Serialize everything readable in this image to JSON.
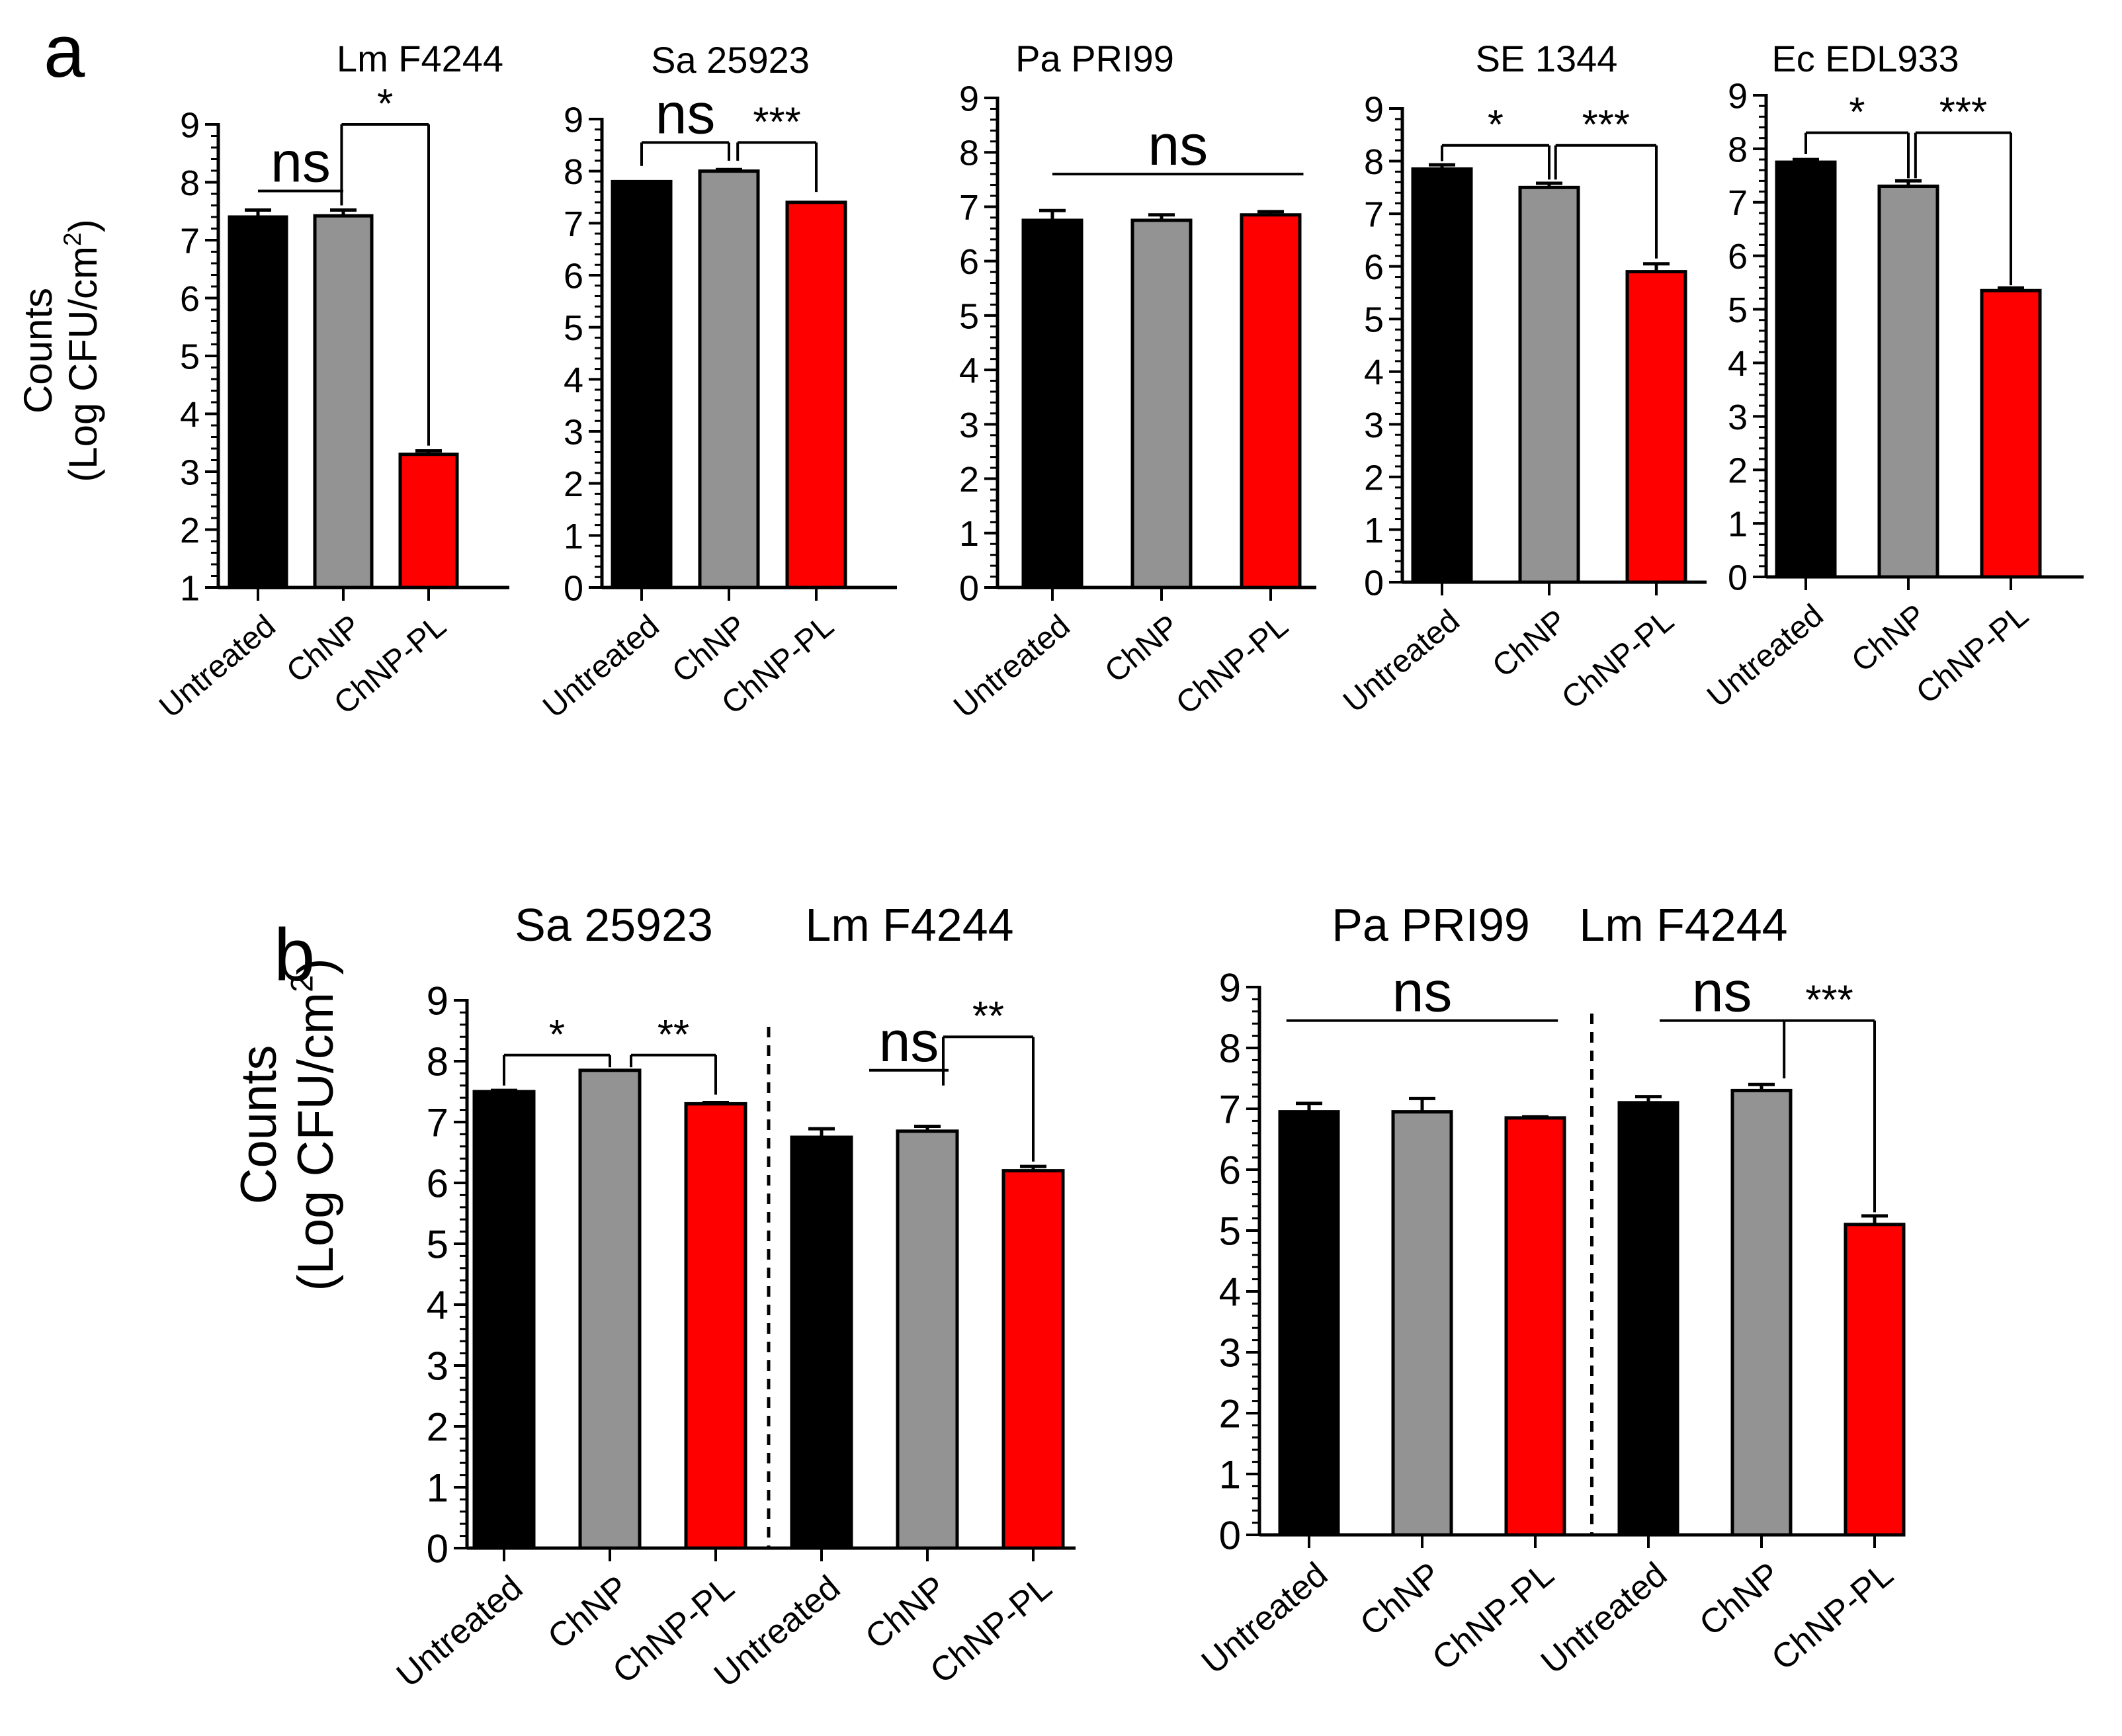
{
  "panel_labels": {
    "a": "a",
    "b": "b"
  },
  "colors": {
    "untreated": "#000000",
    "chnp": "#939393",
    "chnp_pl": "#ff0000",
    "axis": "#000000"
  },
  "chart_data": [
    {
      "type": "bar",
      "panel": "a",
      "title": "Lm F4244",
      "ylabel": "Counts",
      "ylabel2": "(Log CFU/cm",
      "ylabel_sup": "2",
      "ylabel_close": ")",
      "ylim": [
        1,
        9
      ],
      "yticks": [
        "1",
        "2",
        "3",
        "4",
        "5",
        "6",
        "7",
        "8",
        "9"
      ],
      "categories": [
        "Untreated",
        "ChNP",
        "ChNP-PL"
      ],
      "values": [
        7.4,
        7.42,
        3.3
      ],
      "errors": [
        0.12,
        0.1,
        0.06
      ],
      "annotations": [
        {
          "label": "ns",
          "type": "line",
          "from": 0,
          "to": 1,
          "level": 7.85,
          "big": true
        },
        {
          "label": "*",
          "type": "bracket",
          "from": 0.98,
          "to": 2,
          "level": 9.0,
          "drop_to": [
            7.6,
            3.45
          ],
          "big": false
        }
      ]
    },
    {
      "type": "bar",
      "panel": "a",
      "title": "Sa 25923",
      "ylim": [
        0,
        9
      ],
      "yticks": [
        "0",
        "1",
        "2",
        "3",
        "4",
        "5",
        "6",
        "7",
        "8",
        "9"
      ],
      "categories": [
        "Untreated",
        "ChNP",
        "ChNP-PL"
      ],
      "values": [
        7.8,
        8.0,
        7.4
      ],
      "errors": [
        0.0,
        0.03,
        0.0
      ],
      "annotations": [
        {
          "label": "ns",
          "type": "bracket",
          "from": 0,
          "to": 1,
          "level": 8.55,
          "drop_to": [
            8.1,
            8.2
          ],
          "big": true
        },
        {
          "label": "***",
          "type": "bracket",
          "from": 1.1,
          "to": 2,
          "level": 8.55,
          "drop_to": [
            8.2,
            7.6
          ],
          "big": false
        }
      ]
    },
    {
      "type": "bar",
      "panel": "a",
      "title": "Pa PRI99",
      "ylim": [
        0,
        9
      ],
      "yticks": [
        "0",
        "1",
        "2",
        "3",
        "4",
        "5",
        "6",
        "7",
        "8",
        "9"
      ],
      "categories": [
        "Untreated",
        "ChNP",
        "ChNP-PL"
      ],
      "values": [
        6.75,
        6.75,
        6.85
      ],
      "errors": [
        0.18,
        0.1,
        0.06
      ],
      "annotations": [
        {
          "label": "ns",
          "type": "line",
          "from": 0,
          "to": 2.3,
          "level": 7.6,
          "big": true
        }
      ]
    },
    {
      "type": "bar",
      "panel": "a",
      "title": "SE 1344",
      "ylim": [
        0,
        9
      ],
      "yticks": [
        "0",
        "1",
        "2",
        "3",
        "4",
        "5",
        "6",
        "7",
        "8",
        "9"
      ],
      "categories": [
        "Untreated",
        "ChNP",
        "ChNP-PL"
      ],
      "values": [
        7.85,
        7.5,
        5.9
      ],
      "errors": [
        0.08,
        0.08,
        0.15
      ],
      "annotations": [
        {
          "label": "*",
          "type": "bracket",
          "from": 0,
          "to": 1,
          "level": 8.3,
          "drop_to": [
            8.0,
            7.65
          ],
          "big": false
        },
        {
          "label": "***",
          "type": "bracket",
          "from": 1.06,
          "to": 2,
          "level": 8.3,
          "drop_to": [
            7.65,
            6.15
          ],
          "big": false
        }
      ]
    },
    {
      "type": "bar",
      "panel": "a",
      "title": "Ec EDL933",
      "ylim": [
        0,
        9
      ],
      "yticks": [
        "0",
        "1",
        "2",
        "3",
        "4",
        "5",
        "6",
        "7",
        "8",
        "9"
      ],
      "categories": [
        "Untreated",
        "ChNP",
        "ChNP-PL"
      ],
      "values": [
        7.75,
        7.3,
        5.35
      ],
      "errors": [
        0.05,
        0.1,
        0.05
      ],
      "annotations": [
        {
          "label": "*",
          "type": "bracket",
          "from": 0,
          "to": 1,
          "level": 8.3,
          "drop_to": [
            7.9,
            7.45
          ],
          "big": false
        },
        {
          "label": "***",
          "type": "bracket",
          "from": 1.07,
          "to": 2,
          "level": 8.3,
          "drop_to": [
            7.45,
            5.45
          ],
          "big": false
        }
      ]
    },
    {
      "type": "bar",
      "panel": "b",
      "ylabel": "Counts",
      "ylabel2": "(Log CFU/cm",
      "ylabel_sup": "2",
      "ylabel_close": ")",
      "ylim": [
        0,
        9
      ],
      "yticks": [
        "0",
        "1",
        "2",
        "3",
        "4",
        "5",
        "6",
        "7",
        "8",
        "9"
      ],
      "group_titles": [
        "Sa 25923",
        "Lm F4244"
      ],
      "categories": [
        "Untreated",
        "ChNP",
        "ChNP-PL",
        "Untreated",
        "ChNP",
        "ChNP-PL"
      ],
      "values": [
        7.5,
        7.85,
        7.3,
        6.75,
        6.85,
        6.2
      ],
      "errors": [
        0.02,
        0.0,
        0.02,
        0.14,
        0.08,
        0.07
      ],
      "annotations": [
        {
          "label": "*",
          "type": "bracket",
          "from": 0,
          "to": 1,
          "level": 8.1,
          "drop_to": [
            7.6,
            7.9
          ],
          "big": false
        },
        {
          "label": "**",
          "type": "bracket",
          "from": 1.2,
          "to": 2,
          "level": 8.1,
          "drop_to": [
            7.9,
            7.45
          ],
          "big": false
        },
        {
          "label": "ns",
          "type": "line",
          "from": 3.45,
          "to": 4.2,
          "level": 7.85,
          "big": true
        },
        {
          "label": "**",
          "type": "bracket",
          "from": 4.15,
          "to": 5,
          "level": 8.4,
          "drop_to": [
            7.6,
            6.35
          ],
          "big": false
        }
      ]
    },
    {
      "type": "bar",
      "panel": "b",
      "ylim": [
        0,
        9
      ],
      "yticks": [
        "0",
        "1",
        "2",
        "3",
        "4",
        "5",
        "6",
        "7",
        "8",
        "9"
      ],
      "group_titles": [
        "Pa PRI99",
        "Lm F4244"
      ],
      "categories": [
        "Untreated",
        "ChNP",
        "ChNP-PL",
        "Untreated",
        "ChNP",
        "ChNP-PL"
      ],
      "values": [
        6.95,
        6.95,
        6.85,
        7.1,
        7.3,
        5.1
      ],
      "errors": [
        0.14,
        0.22,
        0.02,
        0.1,
        0.1,
        0.14
      ],
      "annotations": [
        {
          "label": "ns",
          "type": "line",
          "from": -0.2,
          "to": 2.2,
          "level": 8.45,
          "big": true
        },
        {
          "label": "ns",
          "type": "line",
          "from": 3.1,
          "to": 4.2,
          "level": 8.45,
          "big": true
        },
        {
          "label": "***",
          "type": "bracket",
          "from": 4.2,
          "to": 5,
          "level": 8.45,
          "drop_to": [
            7.5,
            5.3
          ],
          "big": false
        }
      ]
    }
  ]
}
